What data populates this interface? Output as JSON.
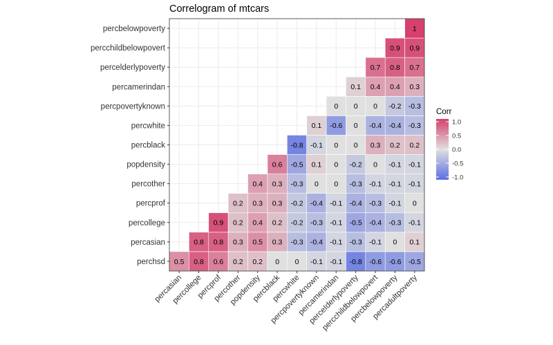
{
  "chart_data": {
    "type": "heatmap",
    "title": "Correlogram of mtcars",
    "x_categories": [
      "percasian",
      "percollege",
      "percprof",
      "percother",
      "popdensity",
      "percblack",
      "percwhite",
      "percpovertyknown",
      "percamerindan",
      "perceIderlypoverty",
      "percchildbelowpovert",
      "percbelowpoverty",
      "percadultpoverty"
    ],
    "y_categories": [
      "perchsd",
      "percasian",
      "percollege",
      "percprof",
      "percother",
      "popdensity",
      "percblack",
      "percwhite",
      "percpovertyknown",
      "percamerindan",
      "percelderlypoverty",
      "percchildbelowpovert",
      "percbelowpoverty"
    ],
    "rows": [
      {
        "y": "perchsd",
        "start_col": 0,
        "values": [
          0.5,
          0.8,
          0.6,
          0.2,
          0.2,
          0,
          0,
          -0.1,
          -0.1,
          -0.8,
          -0.6,
          -0.6,
          -0.5
        ]
      },
      {
        "y": "percasian",
        "start_col": 1,
        "values": [
          0.8,
          0.8,
          0.3,
          0.5,
          0.3,
          -0.3,
          -0.4,
          -0.1,
          -0.3,
          -0.1,
          0,
          0.1
        ]
      },
      {
        "y": "percollege",
        "start_col": 2,
        "values": [
          0.9,
          0.2,
          0.4,
          0.2,
          -0.2,
          -0.3,
          -0.1,
          -0.5,
          -0.4,
          -0.3,
          -0.1
        ]
      },
      {
        "y": "percprof",
        "start_col": 3,
        "values": [
          0.2,
          0.3,
          0.3,
          -0.2,
          -0.4,
          -0.1,
          -0.4,
          -0.3,
          -0.1,
          0
        ]
      },
      {
        "y": "percother",
        "start_col": 4,
        "values": [
          0.4,
          0.3,
          -0.3,
          0,
          0,
          -0.3,
          -0.1,
          -0.1,
          -0.1
        ]
      },
      {
        "y": "popdensity",
        "start_col": 5,
        "values": [
          0.6,
          -0.5,
          0.1,
          0,
          -0.2,
          0,
          -0.1,
          -0.1
        ]
      },
      {
        "y": "percblack",
        "start_col": 6,
        "values": [
          -0.8,
          -0.1,
          0,
          0,
          0.3,
          0.2,
          0.2
        ]
      },
      {
        "y": "percwhite",
        "start_col": 7,
        "values": [
          0.1,
          -0.6,
          0,
          -0.4,
          -0.4,
          -0.3
        ]
      },
      {
        "y": "percpovertyknown",
        "start_col": 8,
        "values": [
          0,
          0,
          0,
          -0.2,
          -0.3
        ]
      },
      {
        "y": "percamerindan",
        "start_col": 9,
        "values": [
          0.1,
          0.4,
          0.4,
          0.3
        ]
      },
      {
        "y": "percelderlypoverty",
        "start_col": 10,
        "values": [
          0.7,
          0.8,
          0.7
        ]
      },
      {
        "y": "percchildbelowpovert",
        "start_col": 11,
        "values": [
          0.9,
          0.9
        ]
      },
      {
        "y": "percbelowpoverty",
        "start_col": 12,
        "values": [
          1
        ]
      }
    ],
    "legend": {
      "title": "Corr",
      "ticks": [
        "1.0",
        "0.5",
        "0.0",
        "-0.5",
        "-1.0"
      ],
      "range": [
        -1,
        1
      ],
      "placement": "right"
    },
    "colors": {
      "low": "#5B6EE1",
      "mid": "#E0E0E0",
      "high": "#D6406C"
    },
    "grid": true
  }
}
